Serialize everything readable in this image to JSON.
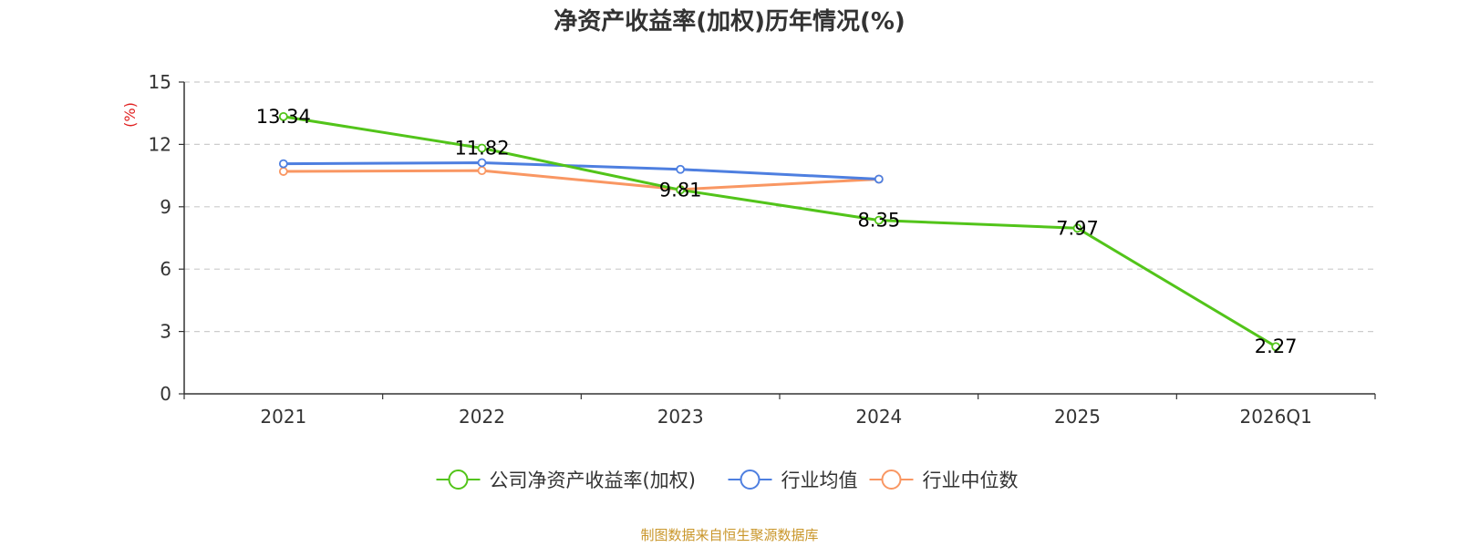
{
  "chart_data": {
    "type": "line",
    "title": "净资产收益率(加权)历年情况(%)",
    "xlabel": "",
    "ylabel": "(%)",
    "categories": [
      "2021",
      "2022",
      "2023",
      "2024",
      "2025",
      "2026Q1"
    ],
    "ylim": [
      0,
      15
    ],
    "yticks": [
      0,
      3,
      6,
      9,
      12,
      15
    ],
    "grid": true,
    "legend_position": "bottom",
    "series": [
      {
        "name": "公司净资产收益率(加权)",
        "color": "#52c41a",
        "values": [
          13.34,
          11.82,
          9.81,
          8.35,
          7.97,
          2.27
        ],
        "labels": [
          "13.34",
          "11.82",
          "9.81",
          "8.35",
          "7.97",
          "2.27"
        ]
      },
      {
        "name": "行业均值",
        "color": "#4e7fe0",
        "values": [
          11.07,
          11.12,
          10.8,
          10.33,
          null,
          null
        ]
      },
      {
        "name": "行业中位数",
        "color": "#f99763",
        "values": [
          10.7,
          10.74,
          9.83,
          10.33,
          null,
          null
        ]
      }
    ]
  },
  "ylabel_color": "#e02020",
  "source": {
    "text": "制图数据来自恒生聚源数据库",
    "color": "#c9962a"
  }
}
